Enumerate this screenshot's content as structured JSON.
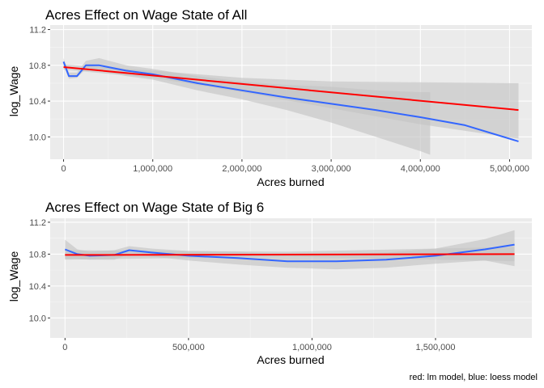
{
  "colors": {
    "panel": "#ebebeb",
    "grid_major": "#ffffff",
    "band": "#c4c4c4",
    "lm": "#ff0000",
    "loess": "#3366ff",
    "tick_text": "#4d4d4d"
  },
  "caption": "red: lm model, blue: loess model",
  "chart_data": [
    {
      "type": "line",
      "title": "Acres Effect on Wage State of All",
      "xlabel": "Acres burned",
      "ylabel": "log_Wage",
      "xlim": [
        -150000,
        5250000
      ],
      "ylim": [
        9.75,
        11.25
      ],
      "xticks": [
        0,
        1000000,
        2000000,
        3000000,
        4000000,
        5000000
      ],
      "xtick_labels": [
        "0",
        "1,000,000",
        "2,000,000",
        "3,000,000",
        "4,000,000",
        "5,000,000"
      ],
      "yticks": [
        10.0,
        10.4,
        10.8,
        11.2
      ],
      "ytick_labels": [
        "10.0",
        "10.4",
        "10.8",
        "11.2"
      ],
      "grid": true,
      "series": [
        {
          "name": "loess",
          "color": "#3366ff",
          "x": [
            0,
            60000,
            150000,
            250000,
            400000,
            700000,
            1000000,
            1500000,
            2000000,
            2500000,
            3000000,
            3500000,
            4000000,
            4500000,
            5100000
          ],
          "y": [
            10.84,
            10.68,
            10.68,
            10.8,
            10.8,
            10.74,
            10.7,
            10.6,
            10.52,
            10.44,
            10.37,
            10.3,
            10.22,
            10.13,
            9.95
          ],
          "band": {
            "x": [
              0,
              60000,
              150000,
              250000,
              400000,
              700000,
              1000000,
              1500000,
              2000000,
              2500000,
              3000000,
              3500000,
              4000000,
              4110000
            ],
            "lower": [
              10.8,
              10.65,
              10.66,
              10.76,
              10.74,
              10.68,
              10.64,
              10.52,
              10.42,
              10.3,
              10.16,
              10.0,
              9.84,
              9.8
            ],
            "upper": [
              10.88,
              10.72,
              10.72,
              10.85,
              10.88,
              10.8,
              10.76,
              10.68,
              10.62,
              10.58,
              10.56,
              10.52,
              10.5,
              10.5
            ]
          }
        },
        {
          "name": "lm",
          "color": "#ff0000",
          "x": [
            0,
            5100000
          ],
          "y": [
            10.78,
            10.3
          ],
          "band": {
            "x": [
              0,
              1000000,
              2000000,
              3000000,
              4000000,
              5100000
            ],
            "lower": [
              10.75,
              10.66,
              10.5,
              10.32,
              10.14,
              9.98
            ],
            "upper": [
              10.81,
              10.74,
              10.66,
              10.62,
              10.61,
              10.6
            ]
          }
        }
      ]
    },
    {
      "type": "line",
      "title": "Acres Effect on Wage State of Big 6",
      "xlabel": "Acres burned",
      "ylabel": "log_Wage",
      "xlim": [
        -60000,
        1890000
      ],
      "ylim": [
        9.75,
        11.25
      ],
      "xticks": [
        0,
        500000,
        1000000,
        1500000
      ],
      "xtick_labels": [
        "0",
        "500,000",
        "1,000,000",
        "1,500,000"
      ],
      "yticks": [
        10.0,
        10.4,
        10.8,
        11.2
      ],
      "ytick_labels": [
        "10.0",
        "10.4",
        "10.8",
        "11.2"
      ],
      "grid": true,
      "series": [
        {
          "name": "loess",
          "color": "#3366ff",
          "x": [
            0,
            50000,
            100000,
            200000,
            260000,
            350000,
            500000,
            700000,
            900000,
            1100000,
            1300000,
            1500000,
            1700000,
            1820000
          ],
          "y": [
            10.86,
            10.8,
            10.78,
            10.79,
            10.85,
            10.82,
            10.78,
            10.75,
            10.71,
            10.71,
            10.73,
            10.78,
            10.86,
            10.92
          ],
          "band": {
            "x": [
              0,
              50000,
              100000,
              200000,
              260000,
              350000,
              500000,
              700000,
              900000,
              1100000,
              1300000,
              1500000,
              1700000,
              1820000
            ],
            "lower": [
              10.74,
              10.74,
              10.73,
              10.73,
              10.8,
              10.77,
              10.72,
              10.67,
              10.63,
              10.61,
              10.63,
              10.68,
              10.72,
              10.65
            ],
            "upper": [
              10.98,
              10.86,
              10.83,
              10.85,
              10.9,
              10.87,
              10.84,
              10.83,
              10.79,
              10.8,
              10.82,
              10.87,
              10.99,
              11.1
            ]
          }
        },
        {
          "name": "lm",
          "color": "#ff0000",
          "x": [
            0,
            1820000
          ],
          "y": [
            10.79,
            10.8
          ],
          "band": {
            "x": [
              0,
              900000,
              1820000
            ],
            "lower": [
              10.73,
              10.77,
              10.71
            ],
            "upper": [
              10.85,
              10.83,
              10.89
            ]
          }
        }
      ]
    }
  ]
}
